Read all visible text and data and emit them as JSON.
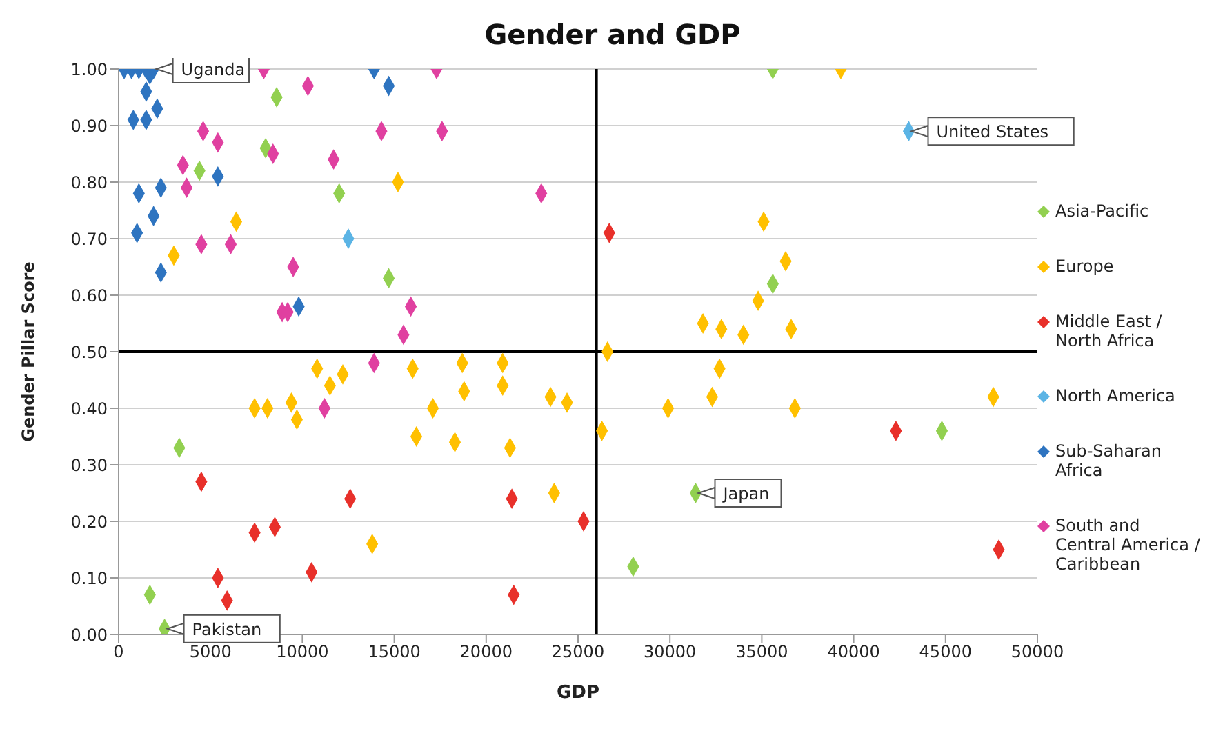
{
  "chart_data": {
    "type": "scatter",
    "title": "Gender and GDP",
    "xlabel": "GDP",
    "ylabel": "Gender Pillar Score",
    "xlim": [
      0,
      50000
    ],
    "xticks": [
      0,
      5000,
      10000,
      15000,
      20000,
      25000,
      30000,
      35000,
      40000,
      45000,
      50000
    ],
    "ylim": [
      0,
      1
    ],
    "yticks": [
      {
        "value": 0,
        "label": "0.00"
      },
      {
        "value": 0.1,
        "label": "0.10"
      },
      {
        "value": 0.2,
        "label": "0.20"
      },
      {
        "value": 0.3,
        "label": "0.30"
      },
      {
        "value": 0.4,
        "label": "0.40"
      },
      {
        "value": 0.5,
        "label": "0.50"
      },
      {
        "value": 0.6,
        "label": "0.60"
      },
      {
        "value": 0.7,
        "label": "0.70"
      },
      {
        "value": 0.8,
        "label": "0.80"
      },
      {
        "value": 0.9,
        "label": "0.90"
      },
      {
        "value": 1,
        "label": "1.00"
      }
    ],
    "grid": "y",
    "legend": "right",
    "marker": "diamond",
    "ref_lines": [
      {
        "axis": "x",
        "value": 26000,
        "color": "#000000"
      },
      {
        "axis": "y",
        "value": 0.5,
        "color": "#000000"
      }
    ],
    "annotations": [
      {
        "text": "Uganda",
        "x": 1900,
        "y": 1.0
      },
      {
        "text": "Pakistan",
        "x": 2500,
        "y": 0.01
      },
      {
        "text": "United States",
        "x": 43000,
        "y": 0.89
      },
      {
        "text": "Japan",
        "x": 31400,
        "y": 0.25
      }
    ],
    "series": [
      {
        "name": "Asia-Pacific",
        "color": "#92d050",
        "x": [
          8600,
          8000,
          4400,
          12000,
          14700,
          3300,
          1700,
          2500,
          28000,
          31400,
          35600,
          35600,
          44800
        ],
        "values": [
          0.95,
          0.86,
          0.82,
          0.78,
          0.63,
          0.33,
          0.07,
          0.01,
          0.12,
          0.25,
          1.0,
          0.62,
          0.36
        ]
      },
      {
        "name": "Europe",
        "color": "#ffc000",
        "x": [
          3000,
          6400,
          15200,
          7400,
          8100,
          9400,
          9700,
          10800,
          11500,
          12200,
          13800,
          16000,
          16200,
          17100,
          18700,
          18800,
          18300,
          20900,
          20900,
          21300,
          23500,
          24400,
          23700,
          26600,
          26300,
          29900,
          31800,
          32800,
          34000,
          32700,
          32300,
          39300,
          35100,
          36300,
          34800,
          36600,
          36800,
          47600
        ],
        "values": [
          0.67,
          0.73,
          0.8,
          0.4,
          0.4,
          0.41,
          0.38,
          0.47,
          0.44,
          0.46,
          0.16,
          0.47,
          0.35,
          0.4,
          0.48,
          0.43,
          0.34,
          0.48,
          0.44,
          0.33,
          0.42,
          0.41,
          0.25,
          0.5,
          0.36,
          0.4,
          0.55,
          0.54,
          0.53,
          0.47,
          0.42,
          1.0,
          0.73,
          0.66,
          0.59,
          0.54,
          0.4,
          0.42
        ]
      },
      {
        "name": "Middle East / North Africa",
        "color": "#e8302a",
        "x": [
          4500,
          5400,
          5900,
          7400,
          8500,
          10500,
          12600,
          26700,
          21400,
          25300,
          21500,
          42300,
          47900
        ],
        "values": [
          0.27,
          0.1,
          0.06,
          0.18,
          0.19,
          0.11,
          0.24,
          0.71,
          0.24,
          0.2,
          0.07,
          0.36,
          0.15
        ]
      },
      {
        "name": "North America",
        "color": "#5bb4e5",
        "x": [
          43000,
          12500
        ],
        "values": [
          0.89,
          0.7
        ]
      },
      {
        "name": "Sub-Saharan Africa",
        "color": "#2e74c0",
        "x": [
          300,
          700,
          1100,
          1500,
          1700,
          1900,
          1500,
          800,
          1500,
          2100,
          1100,
          2300,
          1900,
          1000,
          2300,
          5400,
          9800,
          13900,
          14700
        ],
        "values": [
          1.0,
          1.0,
          1.0,
          1.0,
          0.99,
          1.0,
          0.96,
          0.91,
          0.91,
          0.93,
          0.78,
          0.79,
          0.74,
          0.71,
          0.64,
          0.81,
          0.58,
          1.0,
          0.97
        ]
      },
      {
        "name": "South and Central America / Caribbean",
        "color": "#e040a0",
        "x": [
          7900,
          10300,
          4600,
          5400,
          3500,
          3700,
          8400,
          11700,
          14300,
          4500,
          6100,
          9500,
          8900,
          9200,
          11200,
          13900,
          15900,
          15500,
          17300,
          17600,
          23000
        ],
        "values": [
          1.0,
          0.97,
          0.89,
          0.87,
          0.83,
          0.79,
          0.85,
          0.84,
          0.89,
          0.69,
          0.69,
          0.65,
          0.57,
          0.57,
          0.4,
          0.48,
          0.58,
          0.53,
          1.0,
          0.89,
          0.78
        ]
      }
    ]
  }
}
